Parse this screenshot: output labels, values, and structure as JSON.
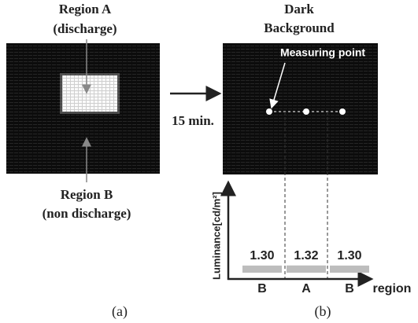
{
  "panel_a": {
    "region_a": "Region A",
    "region_a_note": "(discharge)",
    "region_b": "Region B",
    "region_b_note": "(non discharge)",
    "caption": "(a)"
  },
  "transition": "15 min.",
  "panel_b": {
    "title_lines": [
      "Dark",
      "Background"
    ],
    "measuring_point": "Measuring point",
    "caption": "(b)"
  },
  "luminance_chart": {
    "type": "bar",
    "y_label": "Luminance[cd/m²]",
    "x_label": "region",
    "categories": [
      "B",
      "A",
      "B"
    ],
    "values": [
      1.3,
      1.32,
      1.3
    ],
    "value_labels": [
      "1.30",
      "1.32",
      "1.30"
    ],
    "color": "#bdbdbd"
  }
}
